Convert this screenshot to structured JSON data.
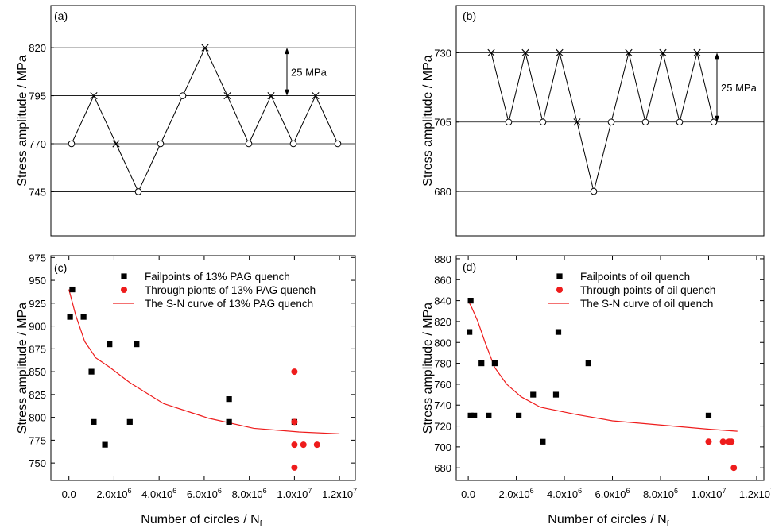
{
  "chart_data": [
    {
      "panel": "(a)",
      "type": "line",
      "subtype": "staircase",
      "ylabel": "Stress amplitude / MPa",
      "ylim": [
        722,
        842
      ],
      "yticks": [
        745,
        770,
        795,
        820
      ],
      "gridlines": [
        745,
        770,
        795,
        820
      ],
      "annotation": "25 MPa",
      "annotation_range": [
        795,
        820
      ],
      "sequence": [
        {
          "value": 770,
          "result": "runout"
        },
        {
          "value": 795,
          "result": "failure"
        },
        {
          "value": 770,
          "result": "failure"
        },
        {
          "value": 745,
          "result": "runout"
        },
        {
          "value": 770,
          "result": "runout"
        },
        {
          "value": 795,
          "result": "runout"
        },
        {
          "value": 820,
          "result": "failure"
        },
        {
          "value": 795,
          "result": "failure"
        },
        {
          "value": 770,
          "result": "runout"
        },
        {
          "value": 795,
          "result": "failure"
        },
        {
          "value": 770,
          "result": "runout"
        },
        {
          "value": 795,
          "result": "failure"
        },
        {
          "value": 770,
          "result": "runout"
        }
      ]
    },
    {
      "panel": "(b)",
      "type": "line",
      "subtype": "staircase",
      "ylabel": "Stress amplitude / MPa",
      "ylim": [
        664,
        747
      ],
      "yticks": [
        680,
        705,
        730
      ],
      "gridlines": [
        680,
        705,
        730
      ],
      "annotation": "25 MPa",
      "annotation_range": [
        705,
        730
      ],
      "sequence": [
        {
          "value": 730,
          "result": "failure"
        },
        {
          "value": 705,
          "result": "runout"
        },
        {
          "value": 730,
          "result": "failure"
        },
        {
          "value": 705,
          "result": "runout"
        },
        {
          "value": 730,
          "result": "failure"
        },
        {
          "value": 705,
          "result": "failure"
        },
        {
          "value": 680,
          "result": "runout"
        },
        {
          "value": 705,
          "result": "runout"
        },
        {
          "value": 730,
          "result": "failure"
        },
        {
          "value": 705,
          "result": "runout"
        },
        {
          "value": 730,
          "result": "failure"
        },
        {
          "value": 705,
          "result": "runout"
        },
        {
          "value": 730,
          "result": "failure"
        },
        {
          "value": 705,
          "result": "runout"
        }
      ]
    },
    {
      "panel": "(c)",
      "type": "scatter",
      "xlabel": "Number of circles / N",
      "xlabel_sub": "f",
      "ylabel": "Stress amplitude / MPa",
      "xlim": [
        -800000,
        12700000
      ],
      "ylim": [
        731,
        977
      ],
      "x_tick_labels": [
        "0.0",
        "2.0x10",
        "4.0x10",
        "6.0x10",
        "8.0x10",
        "1.0x10",
        "1.2x10"
      ],
      "x_tick_exponents": [
        "",
        "6",
        "6",
        "6",
        "6",
        "7",
        "7"
      ],
      "y_tick_labels": [
        "750",
        "775",
        "800",
        "825",
        "850",
        "875",
        "900",
        "925",
        "950",
        "975"
      ],
      "series": [
        {
          "name": "Failpoints of  13% PAG quench",
          "marker": "square",
          "color": "#000000",
          "points": [
            [
              150000,
              940
            ],
            [
              50000,
              910
            ],
            [
              650000,
              910
            ],
            [
              1000000,
              850
            ],
            [
              1100000,
              795
            ],
            [
              1600000,
              770
            ],
            [
              1800000,
              880
            ],
            [
              2700000,
              795
            ],
            [
              3000000,
              880
            ],
            [
              7100000,
              820
            ],
            [
              7100000,
              795
            ],
            [
              10000000,
              795
            ]
          ]
        },
        {
          "name": "Through pionts of  13% PAG quench",
          "marker": "circle",
          "color": "#ee1c1c",
          "points": [
            [
              10000000,
              850
            ],
            [
              10000000,
              795
            ],
            [
              10000000,
              770
            ],
            [
              10000000,
              745
            ],
            [
              10400000,
              770
            ],
            [
              11000000,
              770
            ]
          ]
        },
        {
          "name": "The S-N curve of 13% PAG quench",
          "type": "line",
          "color": "#ee1c1c",
          "points": [
            [
              0,
              940
            ],
            [
              300000,
              912
            ],
            [
              700000,
              883
            ],
            [
              1200000,
              865
            ],
            [
              1800000,
              855
            ],
            [
              2700000,
              838
            ],
            [
              4200000,
              815
            ],
            [
              6200000,
              799
            ],
            [
              8200000,
              788
            ],
            [
              10200000,
              784
            ],
            [
              12000000,
              782
            ]
          ]
        }
      ]
    },
    {
      "panel": "(d)",
      "type": "scatter",
      "xlabel": "Number of circles / N",
      "xlabel_sub": "f",
      "ylabel": "Stress amplitude / MPa",
      "xlim": [
        -500000,
        12300000
      ],
      "ylim": [
        668,
        883
      ],
      "x_tick_labels": [
        "0.0",
        "2.0x10",
        "4.0x10",
        "6.0x10",
        "8.0x10",
        "1.0x10",
        "1.2x10"
      ],
      "x_tick_exponents": [
        "",
        "6",
        "6",
        "6",
        "6",
        "7",
        "7"
      ],
      "y_tick_labels": [
        "680",
        "700",
        "720",
        "740",
        "760",
        "780",
        "800",
        "820",
        "840",
        "860",
        "880"
      ],
      "series": [
        {
          "name": "Failpoints of  oil quench",
          "marker": "square",
          "color": "#000000",
          "points": [
            [
              50000,
              810
            ],
            [
              100000,
              840
            ],
            [
              100000,
              730
            ],
            [
              250000,
              730
            ],
            [
              550000,
              780
            ],
            [
              850000,
              730
            ],
            [
              1100000,
              780
            ],
            [
              2100000,
              730
            ],
            [
              2700000,
              750
            ],
            [
              3100000,
              705
            ],
            [
              3650000,
              750
            ],
            [
              3750000,
              810
            ],
            [
              5000000,
              780
            ],
            [
              10000000,
              730
            ]
          ]
        },
        {
          "name": "Through points of  oil quench",
          "marker": "circle",
          "color": "#ee1c1c",
          "points": [
            [
              10000000,
              705
            ],
            [
              10600000,
              705
            ],
            [
              10850000,
              705
            ],
            [
              10950000,
              705
            ],
            [
              11050000,
              680
            ]
          ]
        },
        {
          "name": "The S-N curve of oil quench",
          "type": "line",
          "color": "#ee1c1c",
          "points": [
            [
              0,
              840
            ],
            [
              150000,
              833
            ],
            [
              400000,
              820
            ],
            [
              700000,
              800
            ],
            [
              1100000,
              776
            ],
            [
              1600000,
              760
            ],
            [
              2200000,
              748
            ],
            [
              3000000,
              738
            ],
            [
              4500000,
              731
            ],
            [
              6000000,
              725
            ],
            [
              8000000,
              721
            ],
            [
              10000000,
              717
            ],
            [
              11200000,
              715
            ]
          ]
        }
      ]
    }
  ]
}
